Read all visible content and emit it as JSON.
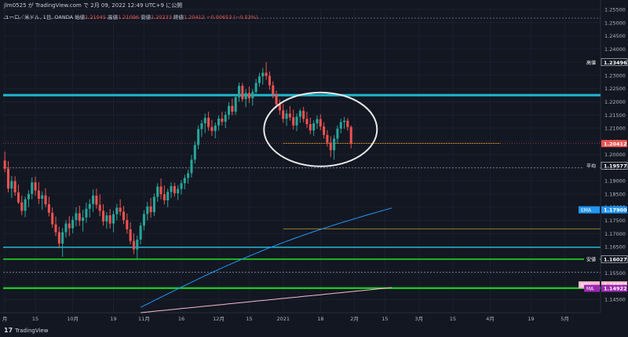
{
  "header": {
    "publish_line": "jlm0525 が TradingView.com で 2月 09, 2022 12:49 UTC+9 に公開",
    "symbol_line": "ユーロ／米ドル, 1日, OANDA",
    "ohlc": [
      {
        "label": "始値",
        "value": "1.21045"
      },
      {
        "label": "高値",
        "value": "1.21096"
      },
      {
        "label": "安値",
        "value": "1.20233"
      },
      {
        "label": "終値",
        "value": "1.20412"
      },
      {
        "label": "",
        "value": "−0.00653 (−0.53%)"
      }
    ]
  },
  "footer": {
    "brand": "TradingView"
  },
  "colors": {
    "background": "#131722",
    "up": "#26a69a",
    "down": "#ef5350",
    "cyan_line": "#1fb8d0",
    "green_line": "#1fe01f",
    "ema_line": "#2196f3",
    "ma_line": "#f8bbd0",
    "gold_line": "#c8a020"
  },
  "chart_data": {
    "type": "candlestick",
    "y_axis": {
      "min": 1.14,
      "max": 1.255,
      "ticks": [
        "1.25500",
        "1.25000",
        "1.24500",
        "1.24000",
        "1.23500",
        "1.23000",
        "1.22500",
        "1.22000",
        "1.21500",
        "1.21000",
        "1.20500",
        "1.20000",
        "1.19500",
        "1.19000",
        "1.18500",
        "1.18000",
        "1.17500",
        "1.17000",
        "1.16500",
        "1.16000",
        "1.15500",
        "1.15000",
        "1.14500"
      ]
    },
    "x_axis": {
      "labels": [
        {
          "text": "月",
          "index": 0
        },
        {
          "text": "15",
          "index": 9
        },
        {
          "text": "10月",
          "index": 20
        },
        {
          "text": "19",
          "index": 32
        },
        {
          "text": "11月",
          "index": 41
        },
        {
          "text": "16",
          "index": 52
        },
        {
          "text": "12月",
          "index": 63
        },
        {
          "text": "15",
          "index": 72
        },
        {
          "text": "2021",
          "index": 82
        },
        {
          "text": "18",
          "index": 93
        },
        {
          "text": "2月",
          "index": 103
        },
        {
          "text": "15",
          "index": 112
        },
        {
          "text": "3月",
          "index": 122
        },
        {
          "text": "15",
          "index": 132
        },
        {
          "text": "4月",
          "index": 143
        },
        {
          "text": "19",
          "index": 155
        },
        {
          "text": "5月",
          "index": 165
        }
      ],
      "total_bars": 176
    },
    "price_labels": [
      {
        "label": "高値",
        "value": "1.23496",
        "price": 1.23496,
        "color": "#131722"
      },
      {
        "label": "",
        "value": "1.20412",
        "price": 1.20412,
        "color": "#ef5350"
      },
      {
        "label": "平均",
        "value": "1.19577",
        "price": 1.19577,
        "color": "#131722"
      },
      {
        "label": "EMA",
        "value": "1.17900",
        "price": 1.179,
        "color": "#2196f3"
      },
      {
        "label": "安値",
        "value": "1.16027",
        "price": 1.16027,
        "color": "#131722"
      },
      {
        "label": "EMA",
        "value": "1.15053",
        "price": 1.15053,
        "color": "#f8bbd0"
      },
      {
        "label": "MA",
        "value": "1.14922",
        "price": 1.14922,
        "color": "#9c27b0"
      }
    ],
    "horizontal_lines": [
      {
        "name": "cyan-resistance",
        "price": 1.2225,
        "color": "#1fb8d0",
        "width": 3
      },
      {
        "name": "cyan-support",
        "price": 1.1648,
        "color": "#1fb8d0",
        "width": 1.5
      },
      {
        "name": "green-support",
        "price": 1.1603,
        "color": "#1fe01f",
        "width": 1.5
      },
      {
        "name": "green-low",
        "price": 1.1493,
        "color": "#1fe01f",
        "width": 2
      },
      {
        "name": "dotted-top",
        "price": 1.2517,
        "color": "#8890a0",
        "width": 0.7
      },
      {
        "name": "dotted-avg",
        "price": 1.1949,
        "color": "#8890a0",
        "width": 0.7
      },
      {
        "name": "dotted-low",
        "price": 1.1553,
        "color": "#8890a0",
        "width": 0.7
      }
    ],
    "candles": [
      [
        1.1977,
        1.2011,
        1.1932,
        1.1946
      ],
      [
        1.1946,
        1.1975,
        1.1856,
        1.1871
      ],
      [
        1.1871,
        1.1918,
        1.1835,
        1.1899
      ],
      [
        1.1899,
        1.1917,
        1.1843,
        1.1856
      ],
      [
        1.1856,
        1.1886,
        1.1812,
        1.1818
      ],
      [
        1.1818,
        1.1843,
        1.177,
        1.1786
      ],
      [
        1.1786,
        1.184,
        1.1762,
        1.183
      ],
      [
        1.183,
        1.1864,
        1.18,
        1.185
      ],
      [
        1.185,
        1.1913,
        1.183,
        1.1894
      ],
      [
        1.1894,
        1.1916,
        1.1843,
        1.1863
      ],
      [
        1.1863,
        1.1895,
        1.1812,
        1.1832
      ],
      [
        1.1832,
        1.186,
        1.179,
        1.1845
      ],
      [
        1.1845,
        1.1872,
        1.18,
        1.1811
      ],
      [
        1.1811,
        1.184,
        1.1765,
        1.1779
      ],
      [
        1.1779,
        1.1799,
        1.1722,
        1.1735
      ],
      [
        1.1735,
        1.1764,
        1.169,
        1.1705
      ],
      [
        1.1705,
        1.1726,
        1.1644,
        1.1662
      ],
      [
        1.1662,
        1.1721,
        1.1612,
        1.1705
      ],
      [
        1.1705,
        1.1751,
        1.1685,
        1.1738
      ],
      [
        1.1738,
        1.1766,
        1.169,
        1.172
      ],
      [
        1.172,
        1.1765,
        1.1701,
        1.1752
      ],
      [
        1.1752,
        1.18,
        1.1727,
        1.1777
      ],
      [
        1.1777,
        1.1806,
        1.1729,
        1.1748
      ],
      [
        1.1748,
        1.179,
        1.1708,
        1.1761
      ],
      [
        1.1761,
        1.1817,
        1.1741,
        1.1794
      ],
      [
        1.1794,
        1.183,
        1.1761,
        1.1812
      ],
      [
        1.1812,
        1.1867,
        1.1782,
        1.1844
      ],
      [
        1.1844,
        1.187,
        1.1794,
        1.1809
      ],
      [
        1.1809,
        1.1849,
        1.1766,
        1.1786
      ],
      [
        1.1786,
        1.1811,
        1.173,
        1.1746
      ],
      [
        1.1746,
        1.1782,
        1.1718,
        1.1769
      ],
      [
        1.1769,
        1.1793,
        1.1719,
        1.1738
      ],
      [
        1.1738,
        1.1786,
        1.1705,
        1.1773
      ],
      [
        1.1773,
        1.1812,
        1.175,
        1.1798
      ],
      [
        1.1798,
        1.183,
        1.1768,
        1.1783
      ],
      [
        1.1783,
        1.1805,
        1.1736,
        1.1751
      ],
      [
        1.1751,
        1.1776,
        1.17,
        1.1716
      ],
      [
        1.1716,
        1.1743,
        1.1659,
        1.1672
      ],
      [
        1.1672,
        1.17,
        1.1622,
        1.164
      ],
      [
        1.164,
        1.1692,
        1.1603,
        1.1677
      ],
      [
        1.1677,
        1.1742,
        1.1659,
        1.173
      ],
      [
        1.173,
        1.1788,
        1.1712,
        1.1774
      ],
      [
        1.1774,
        1.182,
        1.175,
        1.1803
      ],
      [
        1.1803,
        1.1835,
        1.176,
        1.1781
      ],
      [
        1.1781,
        1.1852,
        1.1766,
        1.1839
      ],
      [
        1.1839,
        1.1891,
        1.182,
        1.1878
      ],
      [
        1.1878,
        1.1909,
        1.183,
        1.1849
      ],
      [
        1.1849,
        1.1882,
        1.181,
        1.1826
      ],
      [
        1.1826,
        1.187,
        1.18,
        1.1858
      ],
      [
        1.1858,
        1.1895,
        1.1835,
        1.188
      ],
      [
        1.188,
        1.1893,
        1.184,
        1.1853
      ],
      [
        1.1853,
        1.1884,
        1.1827,
        1.1869
      ],
      [
        1.1869,
        1.1903,
        1.1848,
        1.1891
      ],
      [
        1.1891,
        1.1923,
        1.1868,
        1.1911
      ],
      [
        1.1911,
        1.1943,
        1.1889,
        1.1929
      ],
      [
        1.1929,
        1.1998,
        1.1912,
        1.198
      ],
      [
        1.198,
        1.205,
        1.1965,
        1.2036
      ],
      [
        1.2036,
        1.211,
        1.202,
        1.2096
      ],
      [
        1.2096,
        1.2131,
        1.2066,
        1.2118
      ],
      [
        1.2118,
        1.2155,
        1.2081,
        1.2139
      ],
      [
        1.2139,
        1.2162,
        1.209,
        1.2104
      ],
      [
        1.2104,
        1.2131,
        1.207,
        1.2089
      ],
      [
        1.2089,
        1.2121,
        1.2061,
        1.211
      ],
      [
        1.211,
        1.2148,
        1.209,
        1.2136
      ],
      [
        1.2136,
        1.2162,
        1.211,
        1.2124
      ],
      [
        1.2124,
        1.2163,
        1.21,
        1.215
      ],
      [
        1.215,
        1.2198,
        1.2133,
        1.2184
      ],
      [
        1.2184,
        1.2212,
        1.2148,
        1.2162
      ],
      [
        1.2162,
        1.223,
        1.215,
        1.2217
      ],
      [
        1.2217,
        1.2272,
        1.22,
        1.226
      ],
      [
        1.226,
        1.2271,
        1.22,
        1.221
      ],
      [
        1.221,
        1.2248,
        1.218,
        1.2233
      ],
      [
        1.2233,
        1.2258,
        1.2195,
        1.2213
      ],
      [
        1.2213,
        1.2248,
        1.2185,
        1.2237
      ],
      [
        1.2237,
        1.2287,
        1.2225,
        1.2271
      ],
      [
        1.2271,
        1.231,
        1.2257,
        1.2296
      ],
      [
        1.2296,
        1.2328,
        1.2265,
        1.231
      ],
      [
        1.231,
        1.235,
        1.2283,
        1.2298
      ],
      [
        1.2298,
        1.2315,
        1.2245,
        1.2262
      ],
      [
        1.2262,
        1.2277,
        1.2213,
        1.2228
      ],
      [
        1.2228,
        1.2242,
        1.2175,
        1.219
      ],
      [
        1.219,
        1.2209,
        1.215,
        1.2167
      ],
      [
        1.2167,
        1.2191,
        1.212,
        1.2135
      ],
      [
        1.2135,
        1.217,
        1.2108,
        1.2155
      ],
      [
        1.2155,
        1.2183,
        1.2128,
        1.2141
      ],
      [
        1.2141,
        1.217,
        1.2095,
        1.211
      ],
      [
        1.211,
        1.2156,
        1.2088,
        1.2143
      ],
      [
        1.2143,
        1.2173,
        1.212,
        1.2165
      ],
      [
        1.2165,
        1.218,
        1.2122,
        1.2135
      ],
      [
        1.2135,
        1.2162,
        1.2101,
        1.2115
      ],
      [
        1.2115,
        1.214,
        1.2077,
        1.2091
      ],
      [
        1.2091,
        1.213,
        1.207,
        1.2118
      ],
      [
        1.2118,
        1.2148,
        1.2097,
        1.2134
      ],
      [
        1.2134,
        1.2152,
        1.2092,
        1.2106
      ],
      [
        1.2106,
        1.2122,
        1.206,
        1.2074
      ],
      [
        1.2074,
        1.2092,
        1.203,
        1.2045
      ],
      [
        1.2045,
        1.2069,
        1.199,
        1.2016
      ],
      [
        1.2016,
        1.2073,
        1.198,
        1.206
      ],
      [
        1.206,
        1.211,
        1.2042,
        1.2098
      ],
      [
        1.2098,
        1.2136,
        1.208,
        1.2123
      ],
      [
        1.2123,
        1.2142,
        1.2097,
        1.2128
      ],
      [
        1.2128,
        1.2138,
        1.209,
        1.2104
      ],
      [
        1.2104,
        1.211,
        1.2023,
        1.2041
      ]
    ]
  }
}
